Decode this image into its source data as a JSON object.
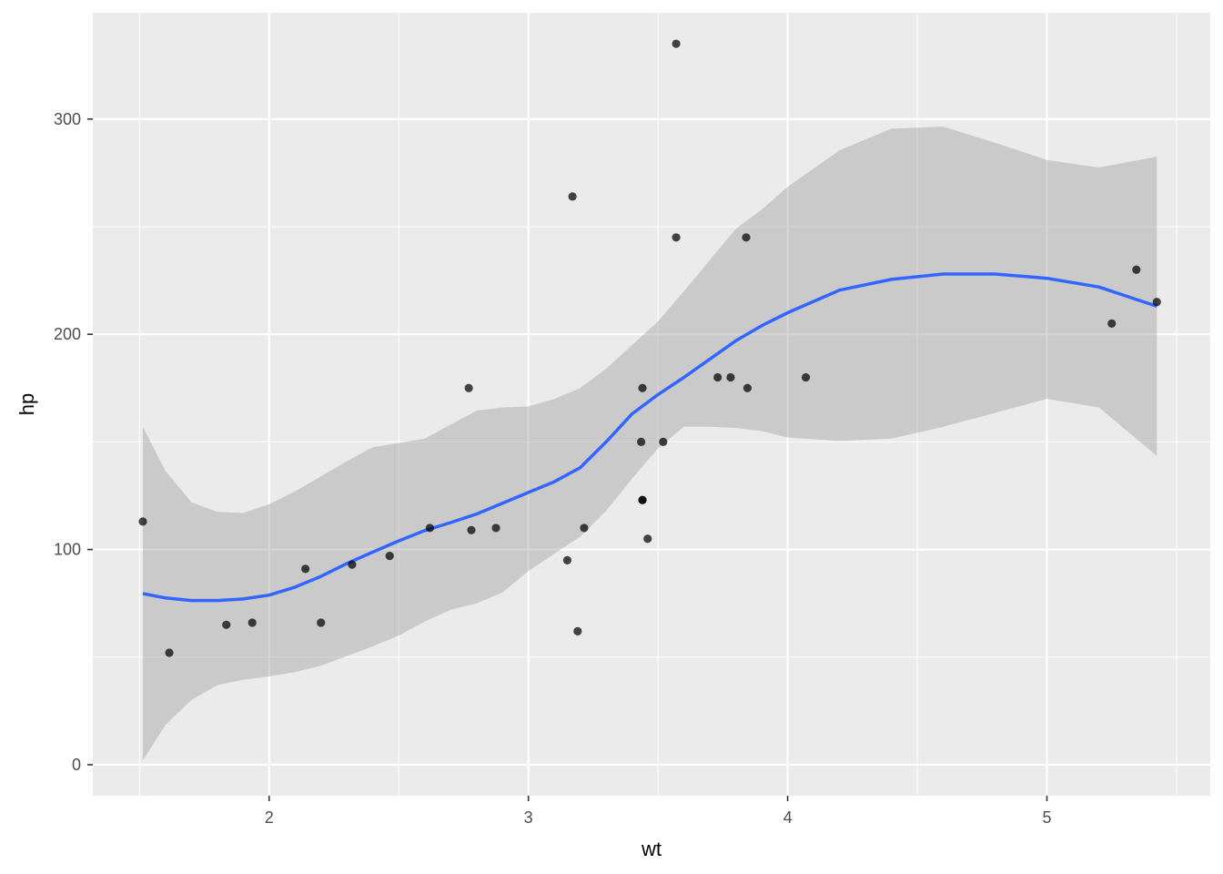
{
  "chart_data": {
    "type": "scatter",
    "xlabel": "wt",
    "ylabel": "hp",
    "xlim": [
      1.32,
      5.63
    ],
    "ylim": [
      -14.4,
      349.4
    ],
    "x_ticks": [
      2,
      3,
      4,
      5
    ],
    "x_tick_labels": [
      "2",
      "3",
      "4",
      "5"
    ],
    "x_minor_ticks": [
      1.5,
      2.5,
      3.5,
      4.5,
      5.5
    ],
    "y_ticks": [
      0,
      100,
      200,
      300
    ],
    "y_tick_labels": [
      "0",
      "100",
      "200",
      "300"
    ],
    "y_minor_ticks": [
      50,
      150,
      250
    ],
    "grid": true,
    "colors": {
      "panel_background": "#ebebeb",
      "grid": "#ffffff",
      "points": "#000000",
      "smooth_line": "#3366ff",
      "confidence_band": "#999999"
    },
    "series": [
      {
        "type": "scatter",
        "points": [
          {
            "x": 2.62,
            "y": 110
          },
          {
            "x": 2.875,
            "y": 110
          },
          {
            "x": 2.32,
            "y": 93
          },
          {
            "x": 3.215,
            "y": 110
          },
          {
            "x": 3.44,
            "y": 175
          },
          {
            "x": 3.46,
            "y": 105
          },
          {
            "x": 3.57,
            "y": 245
          },
          {
            "x": 3.19,
            "y": 62
          },
          {
            "x": 3.15,
            "y": 95
          },
          {
            "x": 3.44,
            "y": 123
          },
          {
            "x": 3.44,
            "y": 123
          },
          {
            "x": 4.07,
            "y": 180
          },
          {
            "x": 3.73,
            "y": 180
          },
          {
            "x": 3.78,
            "y": 180
          },
          {
            "x": 5.25,
            "y": 205
          },
          {
            "x": 5.424,
            "y": 215
          },
          {
            "x": 5.345,
            "y": 230
          },
          {
            "x": 2.2,
            "y": 66
          },
          {
            "x": 1.615,
            "y": 52
          },
          {
            "x": 1.835,
            "y": 65
          },
          {
            "x": 2.465,
            "y": 97
          },
          {
            "x": 3.52,
            "y": 150
          },
          {
            "x": 3.435,
            "y": 150
          },
          {
            "x": 3.84,
            "y": 245
          },
          {
            "x": 3.845,
            "y": 175
          },
          {
            "x": 1.935,
            "y": 66
          },
          {
            "x": 2.14,
            "y": 91
          },
          {
            "x": 1.513,
            "y": 113
          },
          {
            "x": 3.17,
            "y": 264
          },
          {
            "x": 2.77,
            "y": 175
          },
          {
            "x": 3.57,
            "y": 335
          },
          {
            "x": 2.78,
            "y": 109
          }
        ]
      },
      {
        "type": "line",
        "method": "loess",
        "x": [
          1.513,
          1.6,
          1.7,
          1.8,
          1.9,
          2.0,
          2.1,
          2.2,
          2.3,
          2.4,
          2.5,
          2.6,
          2.7,
          2.8,
          2.9,
          3.0,
          3.1,
          3.2,
          3.3,
          3.4,
          3.5,
          3.6,
          3.7,
          3.8,
          3.9,
          4.0,
          4.2,
          4.4,
          4.6,
          4.8,
          5.0,
          5.2,
          5.424
        ],
        "y": [
          79.5,
          77.5,
          76.3,
          76.3,
          77.0,
          78.8,
          82.5,
          87.5,
          93.5,
          98.8,
          104.0,
          108.8,
          112.5,
          116.5,
          121.5,
          126.5,
          131.5,
          138.0,
          150.0,
          163.0,
          172.0,
          180.0,
          188.5,
          197.0,
          204.0,
          210.0,
          220.5,
          225.5,
          228.0,
          228.0,
          226.0,
          222.0,
          213.0
        ],
        "lower": [
          2.0,
          18.5,
          30.0,
          37.0,
          39.5,
          41.0,
          43.0,
          46.0,
          50.5,
          55.0,
          60.0,
          66.5,
          72.0,
          75.0,
          80.0,
          90.0,
          98.0,
          106.0,
          118.0,
          133.0,
          147.0,
          157.0,
          157.0,
          156.5,
          155.0,
          152.0,
          150.5,
          151.5,
          157.0,
          163.5,
          170.0,
          166.0,
          143.5
        ],
        "upper": [
          157.0,
          136.5,
          122.0,
          117.5,
          117.0,
          121.0,
          127.0,
          134.0,
          141.0,
          147.5,
          149.5,
          151.5,
          158.0,
          164.5,
          166.0,
          166.5,
          170.0,
          175.0,
          184.0,
          195.0,
          206.0,
          220.0,
          234.5,
          249.0,
          258.0,
          268.5,
          285.5,
          295.5,
          296.5,
          289.0,
          281.0,
          277.5,
          282.5
        ]
      }
    ]
  }
}
